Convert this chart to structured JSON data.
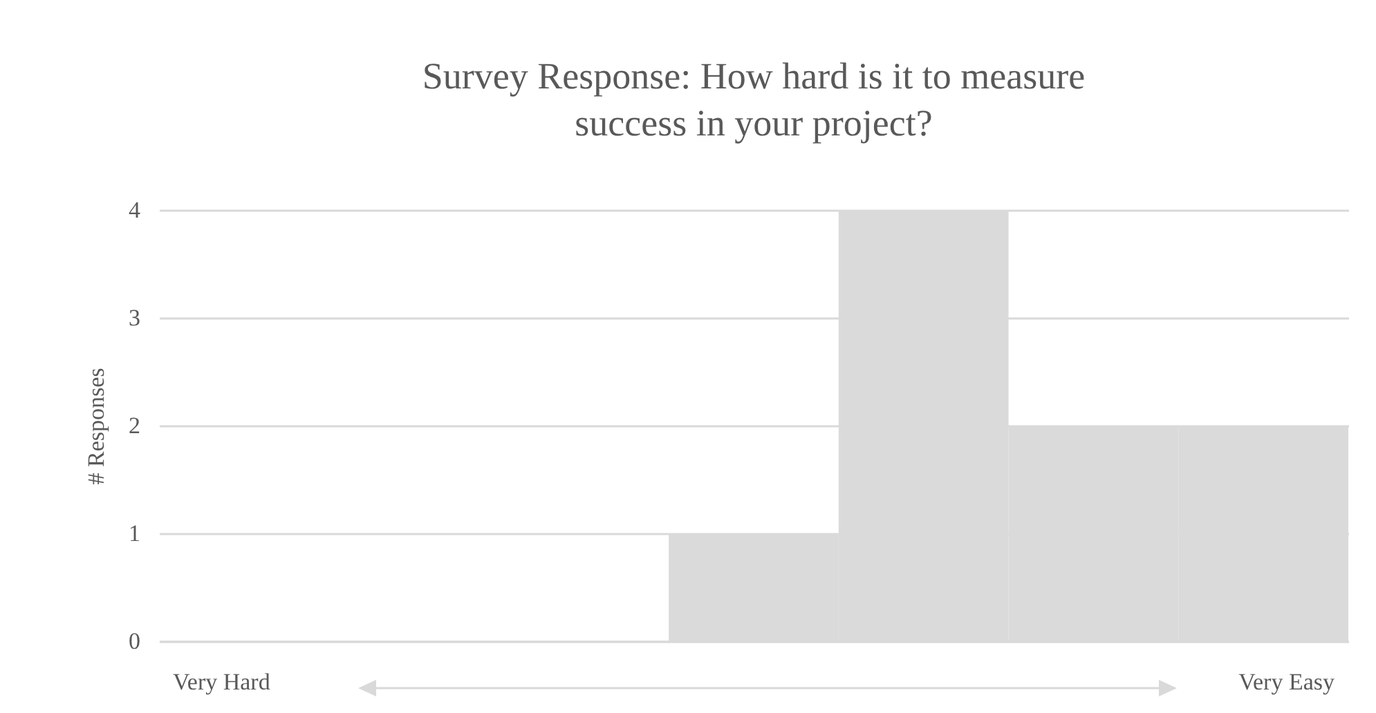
{
  "chart_data": {
    "type": "bar",
    "title": "Survey Response: How hard is it to measure success in your project?",
    "ylabel": "# Responses",
    "categories": [
      null,
      null,
      null,
      null,
      null,
      null,
      null
    ],
    "values": [
      0,
      0,
      0,
      1,
      4,
      2,
      2
    ],
    "color": "#dadada",
    "ylim": [
      0,
      4
    ],
    "yticks": [
      0,
      1,
      2,
      3,
      4
    ],
    "grid": "y",
    "tick_labels": "y",
    "annotations": [
      "Very Hard",
      "Very Easy"
    ]
  }
}
